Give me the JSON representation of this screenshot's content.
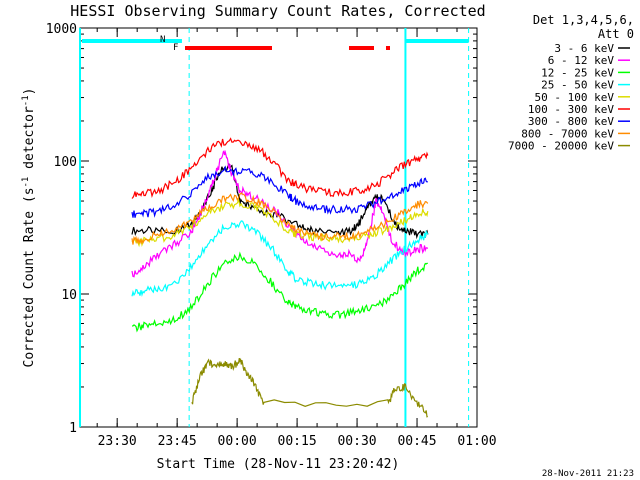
{
  "chart_data": {
    "type": "line",
    "title": "HESSI Observing Summary Count Rates, Corrected",
    "ylabel": "Corrected Count Rate (s",
    "ylabel_sup": "-1",
    "ylabel_mid": " detector",
    "ylabel_end": ")",
    "xlabel": "Start Time (28-Nov-11 23:20:42)",
    "footer_timestamp": "28-Nov-2011 21:23",
    "y_scale": "log",
    "ylim": [
      1,
      1000
    ],
    "xlim": [
      "23:20:42",
      "01:00:00"
    ],
    "x_unit": "minutes after 23:20:42",
    "x_ticks": [
      {
        "label": "23:30",
        "t": 9.3
      },
      {
        "label": "23:45",
        "t": 24.3
      },
      {
        "label": "00:00",
        "t": 39.3
      },
      {
        "label": "00:15",
        "t": 54.3
      },
      {
        "label": "00:30",
        "t": 69.3
      },
      {
        "label": "00:45",
        "t": 84.3
      },
      {
        "label": "01:00",
        "t": 99.3
      }
    ],
    "y_ticks": [
      {
        "label": "1",
        "v": 1
      },
      {
        "label": "10",
        "v": 10
      },
      {
        "label": "100",
        "v": 100
      },
      {
        "label": "1000",
        "v": 1000
      }
    ],
    "legend_header": [
      "Det 1,3,4,5,6,",
      "Att 0"
    ],
    "legend_position": "top-right outside",
    "series": [
      {
        "name": "3 - 6 keV",
        "color": "#000000",
        "x": [
          13,
          18,
          24,
          28,
          30,
          33,
          35,
          38,
          40,
          43,
          47,
          50,
          55,
          58,
          64,
          68,
          70,
          72,
          74,
          76,
          79,
          81.4,
          84.5,
          87
        ],
        "y": [
          30,
          30,
          30,
          33,
          40,
          60,
          85,
          90,
          50,
          45,
          40,
          38,
          32,
          30,
          28,
          30,
          35,
          45,
          55,
          50,
          33,
          30,
          28,
          28
        ]
      },
      {
        "name": "6 - 12 keV",
        "color": "#ff00ff",
        "x": [
          13,
          16,
          20,
          24,
          28,
          30,
          32,
          34,
          36,
          38,
          40,
          43,
          47,
          50,
          53,
          56,
          60,
          64,
          67,
          70,
          72,
          74,
          76,
          78,
          81.4,
          84.5,
          87
        ],
        "y": [
          14,
          16,
          20,
          24,
          30,
          40,
          55,
          80,
          120,
          80,
          60,
          55,
          45,
          40,
          30,
          25,
          22,
          20,
          20,
          18,
          25,
          50,
          40,
          25,
          20,
          22,
          22
        ]
      },
      {
        "name": "12 - 25 keV",
        "color": "#00ff00",
        "x": [
          13,
          16,
          20,
          24,
          28,
          32,
          36,
          40,
          44,
          48,
          52,
          54,
          58,
          62,
          66,
          70,
          74,
          78,
          81.4,
          84.5,
          87
        ],
        "y": [
          5.5,
          5.8,
          6,
          6.5,
          8,
          12,
          17,
          19,
          17,
          12,
          8.5,
          8,
          7.5,
          7,
          7,
          7.5,
          8,
          9.5,
          12,
          15,
          17
        ]
      },
      {
        "name": "25 - 50 keV",
        "color": "#00ffff",
        "x": [
          13,
          16,
          20,
          24,
          28,
          32,
          36,
          40,
          44,
          48,
          52,
          54,
          58,
          62,
          66,
          70,
          74,
          78,
          81.4,
          84.5,
          87
        ],
        "y": [
          10,
          10.5,
          11,
          12,
          16,
          24,
          32,
          34,
          30,
          22,
          15,
          13,
          12,
          11.5,
          11.5,
          12,
          14,
          18,
          22,
          26,
          28
        ]
      },
      {
        "name": "50 - 100 keV",
        "color": "#dddd00",
        "x": [
          13,
          16,
          20,
          24,
          28,
          32,
          36,
          40,
          44,
          48,
          52,
          54,
          58,
          62,
          66,
          70,
          74,
          78,
          81.4,
          84.5,
          87
        ],
        "y": [
          24,
          25,
          26,
          28,
          33,
          40,
          46,
          48,
          45,
          38,
          30,
          28,
          27,
          26,
          26,
          27,
          29,
          32,
          36,
          40,
          42
        ]
      },
      {
        "name": "100 - 300 keV",
        "color": "#ff0000",
        "x": [
          13,
          16,
          20,
          24,
          28,
          32,
          36,
          40,
          44,
          48,
          52,
          54,
          58,
          62,
          66,
          70,
          74,
          78,
          81.4,
          84.5,
          87
        ],
        "y": [
          55,
          57,
          60,
          70,
          90,
          120,
          140,
          138,
          128,
          100,
          72,
          66,
          60,
          58,
          58,
          60,
          66,
          80,
          95,
          105,
          110
        ]
      },
      {
        "name": "300 - 800 keV",
        "color": "#0000ff",
        "x": [
          13,
          16,
          20,
          24,
          28,
          32,
          36,
          40,
          44,
          48,
          52,
          54,
          58,
          62,
          66,
          70,
          74,
          78,
          81.4,
          84.5,
          87
        ],
        "y": [
          40,
          40,
          42,
          46,
          58,
          75,
          85,
          84,
          80,
          70,
          55,
          50,
          45,
          43,
          43,
          44,
          48,
          55,
          62,
          68,
          70
        ]
      },
      {
        "name": "800 - 7000 keV",
        "color": "#ff8c00",
        "x": [
          13,
          16,
          20,
          24,
          28,
          32,
          36,
          40,
          44,
          48,
          52,
          54,
          58,
          62,
          66,
          70,
          74,
          78,
          81.4,
          84.5,
          87
        ],
        "y": [
          25,
          26,
          28,
          30,
          36,
          45,
          52,
          54,
          50,
          42,
          33,
          30,
          28,
          27,
          27,
          28,
          31,
          36,
          42,
          47,
          48
        ]
      },
      {
        "name": "7000 - 20000 keV",
        "color": "#8b8b00",
        "x": [
          28,
          30,
          32,
          34,
          36,
          38,
          40,
          42,
          44,
          46,
          77,
          79,
          81.4,
          84.5,
          87
        ],
        "y": [
          1.5,
          2.4,
          3,
          3,
          3,
          2.8,
          3.2,
          2.5,
          2,
          1.5,
          1.5,
          2,
          2,
          1.5,
          1.2
        ]
      }
    ],
    "annotations": [
      {
        "label": "N",
        "color": "#00ffff"
      },
      {
        "label": "F",
        "color": "#ff0000"
      }
    ]
  }
}
